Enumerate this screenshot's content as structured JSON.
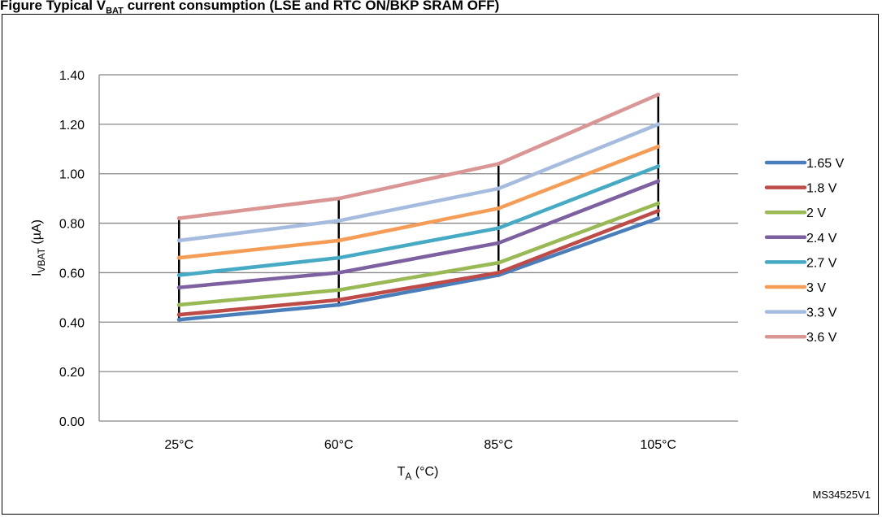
{
  "caption": {
    "prefix": "Figure",
    "text": "Typical V",
    "sub": "BAT",
    "rest": " current consumption (LSE and RTC ON/BKP SRAM OFF)"
  },
  "code": "MS34525V1",
  "chart_data": {
    "type": "line",
    "categories": [
      "25°C",
      "60°C",
      "85°C",
      "105°C"
    ],
    "ylim": [
      0,
      1.4
    ],
    "yticks": [
      "0.00",
      "0.20",
      "0.40",
      "0.60",
      "0.80",
      "1.00",
      "1.20",
      "1.40"
    ],
    "ytick_values": [
      0,
      0.2,
      0.4,
      0.6,
      0.8,
      1.0,
      1.2,
      1.4
    ],
    "ylabel": {
      "main": "I",
      "sub": "VBAT",
      "rest": " (µA)"
    },
    "xlabel": {
      "main": "T",
      "sub": "A",
      "rest": " (°C)"
    },
    "grid": true,
    "legend_position": "right",
    "series": [
      {
        "name": "1.65 V",
        "color": "#4a7ebb",
        "values": [
          0.41,
          0.47,
          0.59,
          0.82
        ]
      },
      {
        "name": "1.8 V",
        "color": "#be4b48",
        "values": [
          0.43,
          0.49,
          0.6,
          0.85
        ]
      },
      {
        "name": "2 V",
        "color": "#98b954",
        "values": [
          0.47,
          0.53,
          0.64,
          0.88
        ]
      },
      {
        "name": "2.4 V",
        "color": "#7d60a0",
        "values": [
          0.54,
          0.6,
          0.72,
          0.97
        ]
      },
      {
        "name": "2.7 V",
        "color": "#46aac4",
        "values": [
          0.59,
          0.66,
          0.78,
          1.03
        ]
      },
      {
        "name": "3 V",
        "color": "#f59d56",
        "values": [
          0.66,
          0.73,
          0.86,
          1.11
        ]
      },
      {
        "name": "3.3 V",
        "color": "#a5bcdf",
        "values": [
          0.73,
          0.81,
          0.94,
          1.2
        ]
      },
      {
        "name": "3.6 V",
        "color": "#d99694",
        "values": [
          0.82,
          0.9,
          1.04,
          1.32
        ]
      }
    ]
  }
}
